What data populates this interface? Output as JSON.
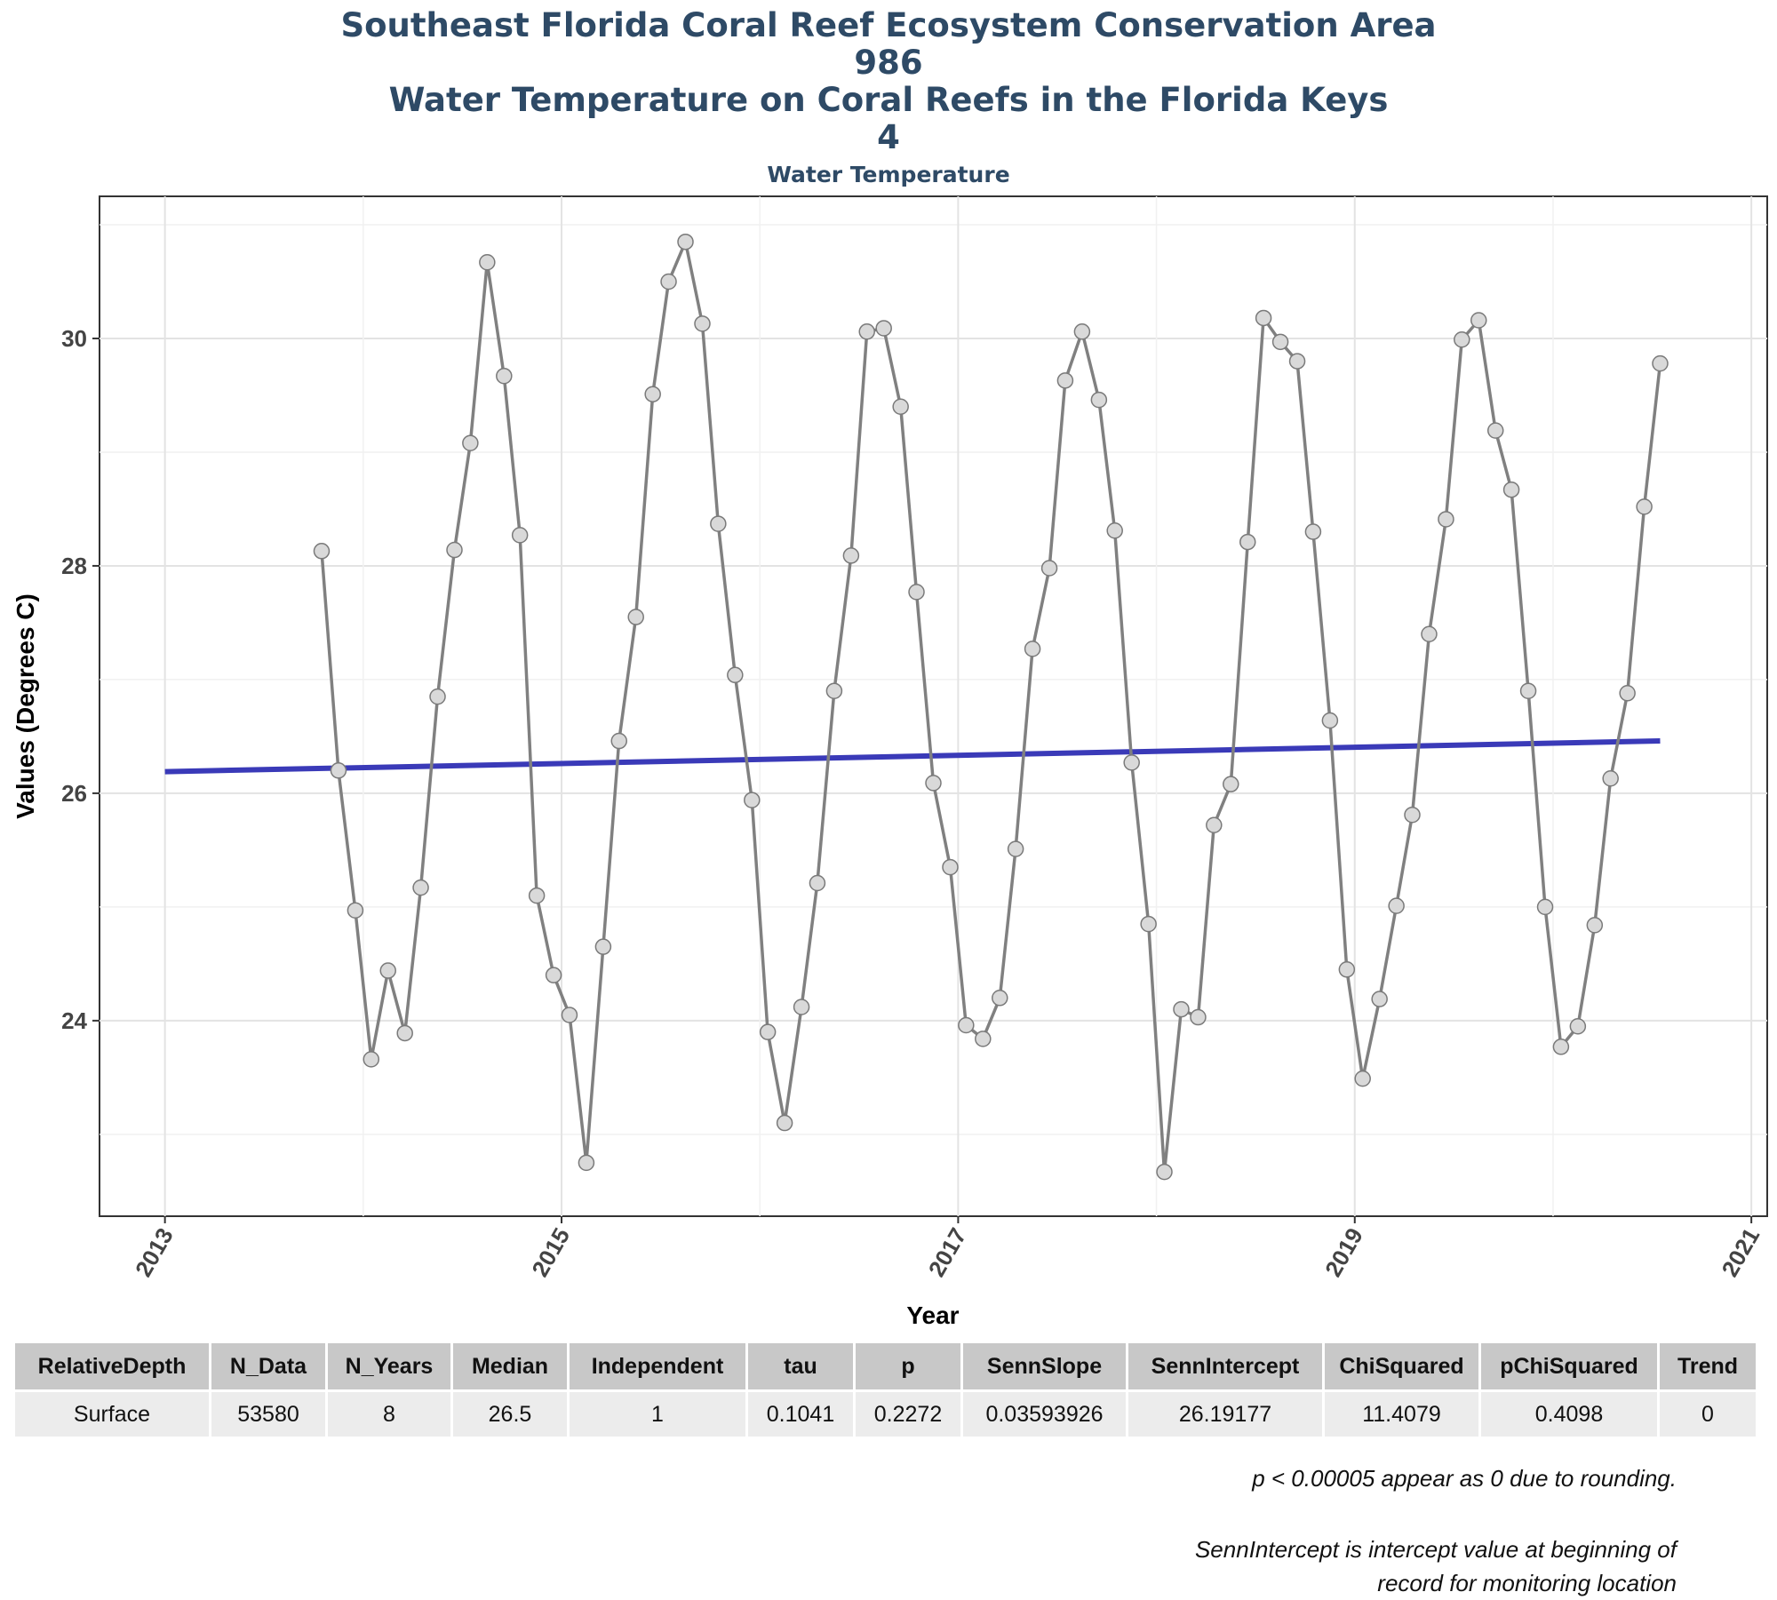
{
  "title_lines": [
    "Southeast Florida Coral Reef Ecosystem Conservation Area",
    "986",
    "Water Temperature on Coral Reefs in the Florida Keys",
    "4"
  ],
  "subtitle": "Water Temperature",
  "chart_data": {
    "type": "line",
    "xlabel": "Year",
    "ylabel": "Values (Degrees C)",
    "xlim": [
      2012.67,
      2021.08
    ],
    "ylim": [
      22.28,
      31.25
    ],
    "x_ticks": [
      2013,
      2015,
      2017,
      2019,
      2021
    ],
    "y_ticks": [
      24,
      26,
      28,
      30
    ],
    "grid": true,
    "series": [
      {
        "marker": "circle",
        "color": "#808080",
        "x": [
          2013.79,
          2013.875,
          2013.96,
          2014.04,
          2014.125,
          2014.21,
          2014.29,
          2014.375,
          2014.46,
          2014.54,
          2014.625,
          2014.71,
          2014.79,
          2014.875,
          2014.96,
          2015.04,
          2015.125,
          2015.21,
          2015.29,
          2015.375,
          2015.46,
          2015.54,
          2015.625,
          2015.71,
          2015.79,
          2015.875,
          2015.96,
          2016.04,
          2016.125,
          2016.21,
          2016.29,
          2016.375,
          2016.46,
          2016.54,
          2016.625,
          2016.71,
          2016.79,
          2016.875,
          2016.96,
          2017.04,
          2017.125,
          2017.21,
          2017.29,
          2017.375,
          2017.46,
          2017.54,
          2017.625,
          2017.71,
          2017.79,
          2017.875,
          2017.96,
          2018.04,
          2018.125,
          2018.21,
          2018.29,
          2018.375,
          2018.46,
          2018.54,
          2018.625,
          2018.71,
          2018.79,
          2018.875,
          2018.96,
          2019.04,
          2019.125,
          2019.21,
          2019.29,
          2019.375,
          2019.46,
          2019.54,
          2019.625,
          2019.71,
          2019.79,
          2019.875,
          2019.96,
          2020.04,
          2020.125,
          2020.21,
          2020.29,
          2020.375,
          2020.46,
          2020.54
        ],
        "values": [
          28.13,
          26.2,
          24.97,
          23.66,
          24.44,
          23.89,
          25.17,
          26.85,
          28.14,
          29.08,
          30.67,
          29.67,
          28.27,
          25.1,
          24.4,
          24.05,
          22.75,
          24.65,
          26.46,
          27.55,
          29.51,
          30.5,
          30.85,
          30.13,
          28.37,
          27.04,
          25.94,
          23.9,
          23.1,
          24.12,
          25.21,
          26.9,
          28.09,
          30.06,
          30.09,
          29.4,
          27.77,
          26.09,
          25.35,
          23.96,
          23.84,
          24.2,
          25.51,
          27.27,
          27.98,
          29.63,
          30.06,
          29.46,
          28.31,
          26.27,
          24.85,
          22.67,
          24.1,
          24.03,
          25.72,
          26.08,
          28.21,
          30.18,
          29.97,
          29.8,
          28.3,
          26.64,
          24.45,
          23.49,
          24.19,
          25.01,
          25.81,
          27.4,
          28.41,
          29.99,
          30.16,
          29.19,
          28.67,
          26.9,
          25.0,
          23.77,
          23.95,
          24.84,
          26.13,
          26.88,
          28.52,
          29.78
        ]
      },
      {
        "type": "trend",
        "color": "#3a3ab8",
        "x": [
          2013.0,
          2020.54
        ],
        "values": [
          26.19,
          26.46
        ]
      }
    ]
  },
  "stats_table": {
    "headers": [
      "RelativeDepth",
      "N_Data",
      "N_Years",
      "Median",
      "Independent",
      "tau",
      "p",
      "SennSlope",
      "SennIntercept",
      "ChiSquared",
      "pChiSquared",
      "Trend"
    ],
    "rows": [
      [
        "Surface",
        "53580",
        "8",
        "26.5",
        "1",
        "0.1041",
        "0.2272",
        "0.03593926",
        "26.19177",
        "11.4079",
        "0.4098",
        "0"
      ]
    ]
  },
  "notes": {
    "p_note": "p < 0.00005 appear as 0 due to rounding.",
    "intercept_note_line1": "SennIntercept is intercept value at beginning of",
    "intercept_note_line2": "record for monitoring location"
  }
}
